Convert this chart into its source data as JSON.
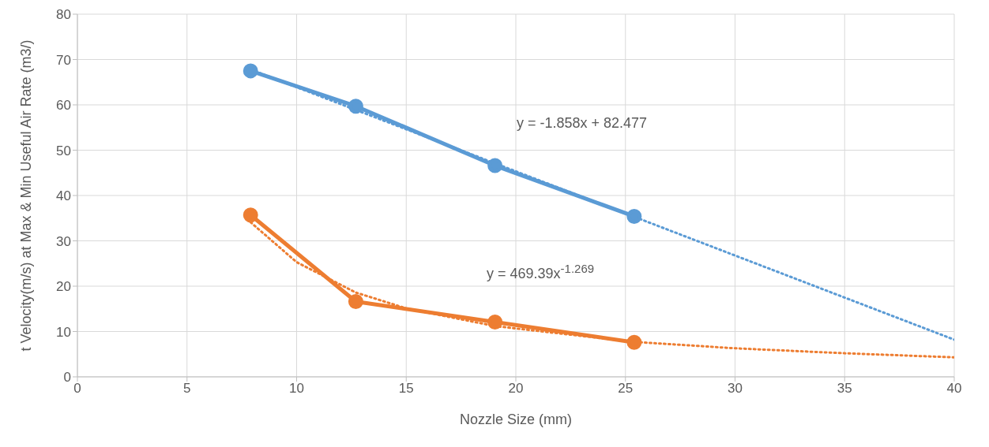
{
  "chart_data": {
    "type": "line",
    "xlabel": "Nozzle Size (mm)",
    "ylabel": "t Velocity(m/s) at Max & Min Useful Air Rate (m3/)",
    "xlim": [
      0,
      40
    ],
    "xticks": [
      0,
      5,
      10,
      15,
      20,
      25,
      30,
      35,
      40
    ],
    "ylim": [
      0,
      80
    ],
    "yticks": [
      0,
      10,
      20,
      30,
      40,
      50,
      60,
      70,
      80
    ],
    "grid": true,
    "marker": "circle",
    "line_style": "solid",
    "series": [
      {
        "color": "#5b9bd5",
        "x": [
          7.9,
          12.7,
          19.05,
          25.4
        ],
        "values": [
          67.5,
          59.7,
          46.6,
          35.4
        ]
      },
      {
        "color": "#ed7d31",
        "x": [
          7.9,
          12.7,
          19.05,
          25.4
        ],
        "values": [
          35.7,
          16.6,
          12.1,
          7.6
        ]
      },
      {
        "color": "#5b9bd5",
        "x": [
          7.9,
          40
        ],
        "values": [
          67.8,
          8.2
        ],
        "marker": "none",
        "line_style": "dotted"
      },
      {
        "color": "#ed7d31",
        "x": [
          7.9,
          10,
          12.7,
          15,
          19.05,
          25.4,
          30,
          35,
          40
        ],
        "values": [
          34.1,
          25.3,
          18.6,
          15.1,
          11.2,
          7.7,
          6.3,
          5.2,
          4.3
        ],
        "marker": "none",
        "line_style": "dotted"
      }
    ],
    "annotations": [
      "y = -1.858x + 82.477",
      "y = 469.39x$^{-1.269}$"
    ]
  }
}
